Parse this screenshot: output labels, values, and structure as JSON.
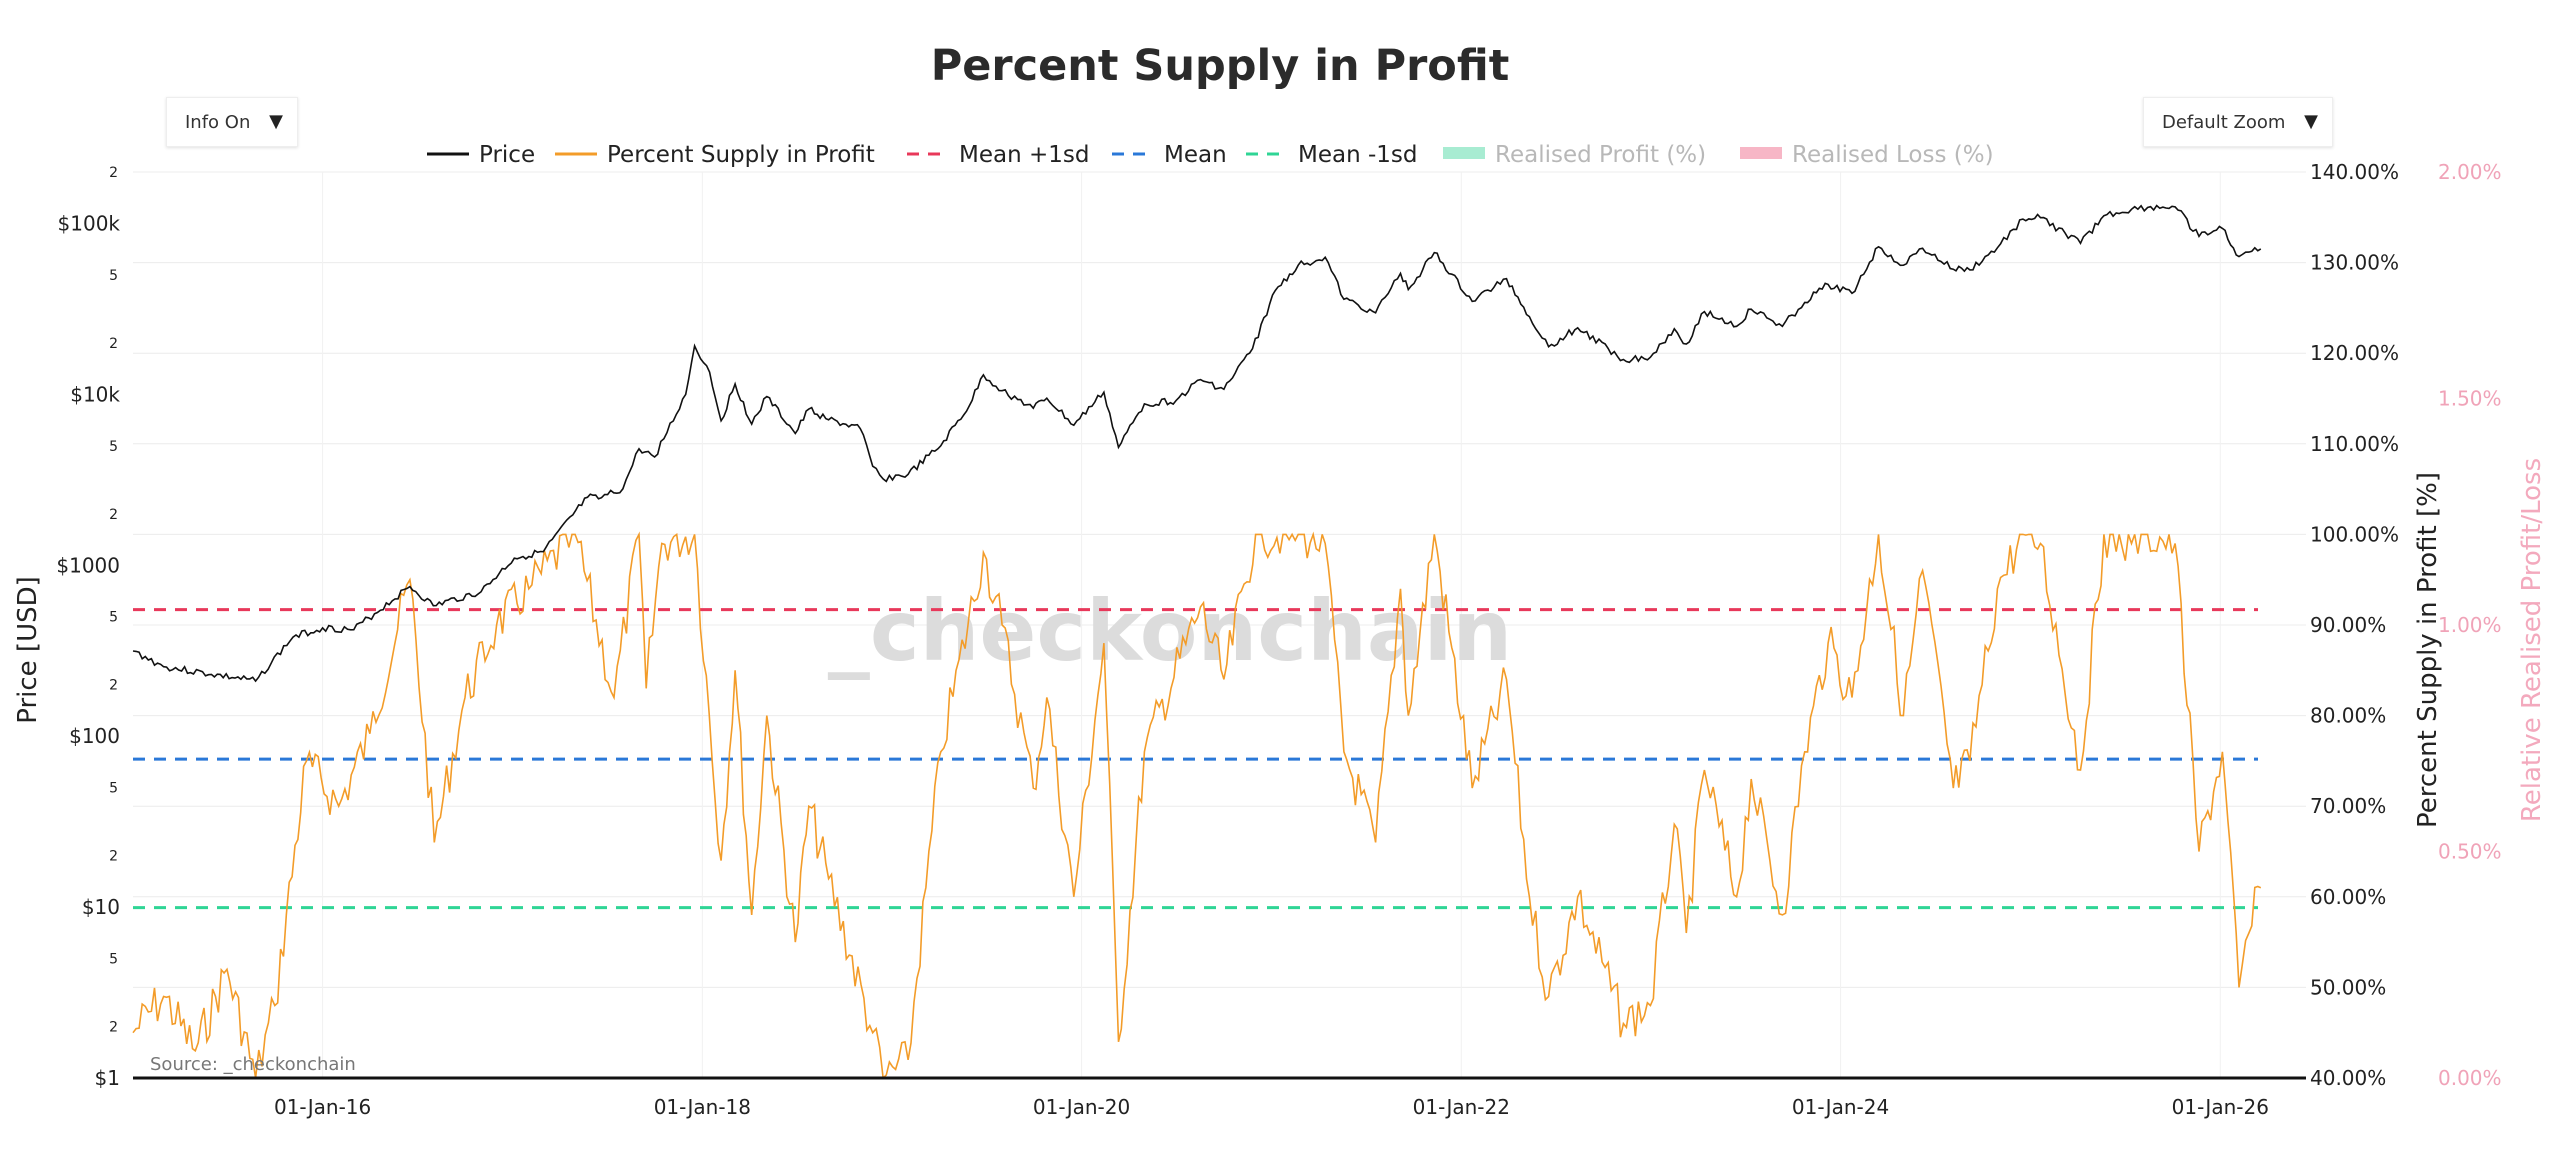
{
  "controls": {
    "info_toggle": "Info On",
    "zoom_select": "Default Zoom",
    "arrow_glyph": "▼"
  },
  "chart_data": {
    "type": "line",
    "title": "Percent Supply in Profit",
    "source": "Source: _checkonchain",
    "watermark": "_checkonchain",
    "x_ticks": [
      "01-Jan-16",
      "01-Jan-18",
      "01-Jan-20",
      "01-Jan-22",
      "01-Jan-24",
      "01-Jan-26"
    ],
    "x_range": [
      "2015-01-01",
      "2026-06-15"
    ],
    "y_left": {
      "label": "Price [USD]",
      "scale": "log",
      "range": [
        1,
        200000
      ],
      "ticks": [
        "$1",
        "$10",
        "$100",
        "$1000",
        "$10k",
        "$100k"
      ],
      "minor_ticks": [
        "2",
        "5"
      ]
    },
    "y_right": {
      "label": "Percent Supply in Profit [%]",
      "range": [
        40,
        140
      ],
      "ticks": [
        "40.00%",
        "50.00%",
        "60.00%",
        "70.00%",
        "80.00%",
        "90.00%",
        "100.00%",
        "110.00%",
        "120.00%",
        "130.00%",
        "140.00%"
      ]
    },
    "y_right2": {
      "label": "Relative Realised Profit/Loss",
      "range": [
        0,
        2
      ],
      "ticks": [
        "0.00%",
        "0.50%",
        "1.00%",
        "1.50%",
        "2.00%"
      ]
    },
    "legend": [
      {
        "name": "Price",
        "color": "#111111",
        "style": "solid",
        "active": true
      },
      {
        "name": "Percent Supply in Profit",
        "color": "#f39c29",
        "style": "solid",
        "active": true
      },
      {
        "name": "Mean +1sd",
        "color": "#e8385a",
        "style": "dashed",
        "active": true
      },
      {
        "name": "Mean",
        "color": "#2a78d8",
        "style": "dashed",
        "active": true
      },
      {
        "name": "Mean -1sd",
        "color": "#2fd595",
        "style": "dashed",
        "active": true
      },
      {
        "name": "Realised Profit (%)",
        "color": "#a8ecd2",
        "style": "band",
        "active": false
      },
      {
        "name": "Realised Loss (%)",
        "color": "#f7b6c6",
        "style": "band",
        "active": false
      }
    ],
    "bands": {
      "mean_plus_1sd": 91.7,
      "mean": 75.2,
      "mean_minus_1sd": 58.8
    },
    "series": [
      {
        "name": "Price",
        "color": "#111111",
        "points": [
          [
            "2015-01-01",
            315
          ],
          [
            "2015-03-01",
            255
          ],
          [
            "2015-06-01",
            230
          ],
          [
            "2015-08-25",
            210
          ],
          [
            "2015-11-05",
            380
          ],
          [
            "2016-01-01",
            430
          ],
          [
            "2016-03-01",
            420
          ],
          [
            "2016-06-17",
            750
          ],
          [
            "2016-08-01",
            580
          ],
          [
            "2016-11-01",
            700
          ],
          [
            "2017-01-04",
            1100
          ],
          [
            "2017-03-01",
            1200
          ],
          [
            "2017-05-25",
            2500
          ],
          [
            "2017-06-15",
            2450
          ],
          [
            "2017-08-01",
            2800
          ],
          [
            "2017-09-01",
            4800
          ],
          [
            "2017-10-01",
            4300
          ],
          [
            "2017-11-30",
            10000
          ],
          [
            "2017-12-17",
            19200
          ],
          [
            "2018-01-15",
            13500
          ],
          [
            "2018-02-06",
            7000
          ],
          [
            "2018-03-05",
            11500
          ],
          [
            "2018-04-06",
            6700
          ],
          [
            "2018-05-05",
            9700
          ],
          [
            "2018-06-29",
            5900
          ],
          [
            "2018-07-25",
            8200
          ],
          [
            "2018-09-01",
            7100
          ],
          [
            "2018-11-01",
            6300
          ],
          [
            "2018-11-25",
            3800
          ],
          [
            "2018-12-15",
            3200
          ],
          [
            "2019-02-01",
            3400
          ],
          [
            "2019-04-05",
            5000
          ],
          [
            "2019-05-30",
            8600
          ],
          [
            "2019-06-26",
            13000
          ],
          [
            "2019-08-01",
            10500
          ],
          [
            "2019-09-30",
            8300
          ],
          [
            "2019-10-26",
            9500
          ],
          [
            "2019-12-17",
            6600
          ],
          [
            "2020-02-13",
            10300
          ],
          [
            "2020-03-12",
            4900
          ],
          [
            "2020-05-01",
            8800
          ],
          [
            "2020-07-01",
            9200
          ],
          [
            "2020-08-17",
            12200
          ],
          [
            "2020-10-01",
            10700
          ],
          [
            "2020-11-25",
            18500
          ],
          [
            "2021-01-08",
            40500
          ],
          [
            "2021-02-21",
            57000
          ],
          [
            "2021-04-14",
            63500
          ],
          [
            "2021-05-20",
            36000
          ],
          [
            "2021-07-20",
            30000
          ],
          [
            "2021-09-06",
            51000
          ],
          [
            "2021-09-21",
            41000
          ],
          [
            "2021-11-10",
            67500
          ],
          [
            "2022-01-22",
            35000
          ],
          [
            "2022-03-29",
            47500
          ],
          [
            "2022-05-12",
            28500
          ],
          [
            "2022-06-18",
            19000
          ],
          [
            "2022-08-13",
            24500
          ],
          [
            "2022-11-09",
            16000
          ],
          [
            "2022-12-31",
            16500
          ],
          [
            "2023-02-15",
            24200
          ],
          [
            "2023-03-10",
            19700
          ],
          [
            "2023-04-14",
            30500
          ],
          [
            "2023-06-15",
            25000
          ],
          [
            "2023-07-13",
            31500
          ],
          [
            "2023-09-11",
            25000
          ],
          [
            "2023-10-24",
            34500
          ],
          [
            "2023-12-08",
            44000
          ],
          [
            "2024-01-23",
            39000
          ],
          [
            "2024-03-14",
            73000
          ],
          [
            "2024-05-01",
            57000
          ],
          [
            "2024-06-07",
            71500
          ],
          [
            "2024-08-05",
            54000
          ],
          [
            "2024-09-06",
            53500
          ],
          [
            "2024-10-29",
            72000
          ],
          [
            "2024-12-17",
            106000
          ],
          [
            "2025-01-20",
            108000
          ],
          [
            "2025-04-07",
            76500
          ],
          [
            "2025-05-22",
            111000
          ],
          [
            "2025-07-14",
            121000
          ],
          [
            "2025-08-14",
            124000
          ],
          [
            "2025-10-06",
            125000
          ],
          [
            "2025-11-21",
            84000
          ],
          [
            "2026-01-05",
            93500
          ],
          [
            "2026-02-06",
            64000
          ],
          [
            "2026-02-25",
            68000
          ],
          [
            "2026-03-20",
            71000
          ]
        ]
      },
      {
        "name": "Percent Supply in Profit",
        "color": "#f39c29",
        "points": [
          [
            "2015-01-01",
            45
          ],
          [
            "2015-03-01",
            49
          ],
          [
            "2015-05-01",
            43
          ],
          [
            "2015-07-01",
            52
          ],
          [
            "2015-08-25",
            40
          ],
          [
            "2015-10-01",
            48
          ],
          [
            "2015-12-01",
            75
          ],
          [
            "2016-02-01",
            70
          ],
          [
            "2016-04-01",
            78
          ],
          [
            "2016-06-17",
            95
          ],
          [
            "2016-08-03",
            66
          ],
          [
            "2016-10-01",
            82
          ],
          [
            "2016-12-01",
            90
          ],
          [
            "2017-02-01",
            94
          ],
          [
            "2017-05-01",
            100
          ],
          [
            "2017-07-15",
            82
          ],
          [
            "2017-09-01",
            100
          ],
          [
            "2017-09-15",
            83
          ],
          [
            "2017-10-15",
            99
          ],
          [
            "2017-12-17",
            100
          ],
          [
            "2018-02-06",
            64
          ],
          [
            "2018-03-05",
            85
          ],
          [
            "2018-04-06",
            58
          ],
          [
            "2018-05-05",
            80
          ],
          [
            "2018-06-29",
            55
          ],
          [
            "2018-07-25",
            70
          ],
          [
            "2018-09-01",
            62
          ],
          [
            "2018-11-25",
            45
          ],
          [
            "2018-12-15",
            40
          ],
          [
            "2019-02-01",
            42
          ],
          [
            "2019-04-05",
            76
          ],
          [
            "2019-06-26",
            98
          ],
          [
            "2019-08-01",
            90
          ],
          [
            "2019-09-30",
            72
          ],
          [
            "2019-10-26",
            82
          ],
          [
            "2019-12-17",
            60
          ],
          [
            "2020-02-13",
            88
          ],
          [
            "2020-03-12",
            44
          ],
          [
            "2020-05-01",
            76
          ],
          [
            "2020-08-17",
            92
          ],
          [
            "2020-10-01",
            84
          ],
          [
            "2020-12-01",
            100
          ],
          [
            "2021-02-21",
            100
          ],
          [
            "2021-04-14",
            99
          ],
          [
            "2021-05-20",
            76
          ],
          [
            "2021-07-20",
            66
          ],
          [
            "2021-09-06",
            94
          ],
          [
            "2021-09-21",
            80
          ],
          [
            "2021-11-10",
            100
          ],
          [
            "2022-01-22",
            72
          ],
          [
            "2022-03-29",
            84
          ],
          [
            "2022-05-12",
            60
          ],
          [
            "2022-06-18",
            49
          ],
          [
            "2022-08-13",
            60
          ],
          [
            "2022-11-09",
            46
          ],
          [
            "2022-12-31",
            48
          ],
          [
            "2023-02-15",
            68
          ],
          [
            "2023-03-10",
            56
          ],
          [
            "2023-04-14",
            74
          ],
          [
            "2023-06-15",
            60
          ],
          [
            "2023-07-13",
            73
          ],
          [
            "2023-09-11",
            58
          ],
          [
            "2023-10-24",
            76
          ],
          [
            "2023-12-08",
            88
          ],
          [
            "2024-01-23",
            82
          ],
          [
            "2024-03-14",
            100
          ],
          [
            "2024-05-01",
            80
          ],
          [
            "2024-06-07",
            96
          ],
          [
            "2024-08-05",
            72
          ],
          [
            "2024-09-06",
            75
          ],
          [
            "2024-10-29",
            94
          ],
          [
            "2024-12-17",
            100
          ],
          [
            "2025-01-20",
            99
          ],
          [
            "2025-04-07",
            74
          ],
          [
            "2025-05-22",
            100
          ],
          [
            "2025-07-14",
            99
          ],
          [
            "2025-08-14",
            100
          ],
          [
            "2025-10-06",
            99
          ],
          [
            "2025-11-21",
            65
          ],
          [
            "2026-01-05",
            76
          ],
          [
            "2026-02-06",
            50
          ],
          [
            "2026-02-25",
            56
          ],
          [
            "2026-03-20",
            61
          ]
        ]
      }
    ]
  }
}
